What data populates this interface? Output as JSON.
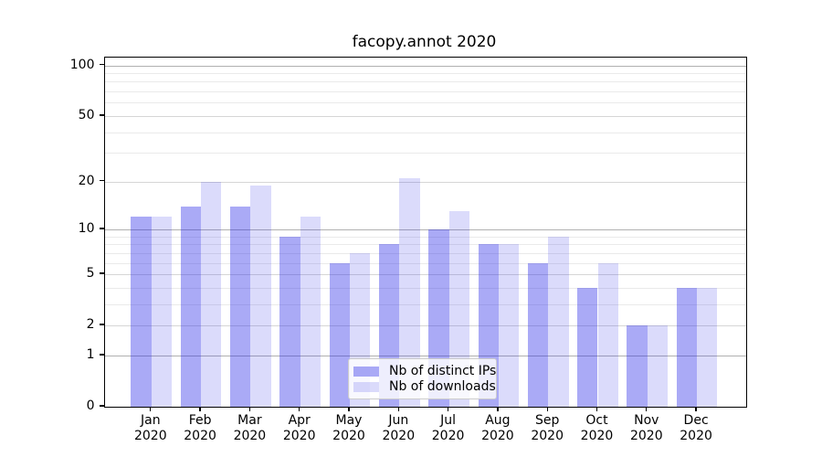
{
  "chart_data": {
    "type": "bar",
    "title": "facopy.annot 2020",
    "categories": [
      "Jan 2020",
      "Feb 2020",
      "Mar 2020",
      "Apr 2020",
      "May 2020",
      "Jun 2020",
      "Jul 2020",
      "Aug 2020",
      "Sep 2020",
      "Oct 2020",
      "Nov 2020",
      "Dec 2020"
    ],
    "series": [
      {
        "name": "Nb of distinct IPs",
        "values": [
          12,
          14,
          14,
          9,
          6,
          8,
          10,
          8,
          6,
          4,
          2,
          4
        ],
        "color": "rgba(42,42,232,0.40)"
      },
      {
        "name": "Nb of downloads",
        "values": [
          12,
          20,
          19,
          12,
          7,
          21,
          13,
          8,
          9,
          6,
          2,
          4
        ],
        "color": "rgba(42,42,232,0.17)"
      }
    ],
    "xlabel": "",
    "ylabel": "",
    "yscale": "log1p",
    "ylim": [
      0,
      112
    ],
    "yticks": [
      0,
      1,
      2,
      5,
      10,
      20,
      50,
      100
    ],
    "yticks_decade": [
      1,
      10,
      100
    ],
    "yticks_mid": [
      2,
      5,
      20,
      50
    ],
    "yticks_minor": [
      3,
      4,
      6,
      7,
      8,
      9,
      30,
      40,
      60,
      70,
      80,
      90
    ],
    "grid": true,
    "legend_position": "lower center"
  },
  "colors": {
    "grid_decade": "#b0b0b0",
    "grid_mid": "#d6d6d6",
    "grid_minor": "#eaeaea",
    "axis": "#000000",
    "text": "#000000",
    "background": "#ffffff"
  }
}
